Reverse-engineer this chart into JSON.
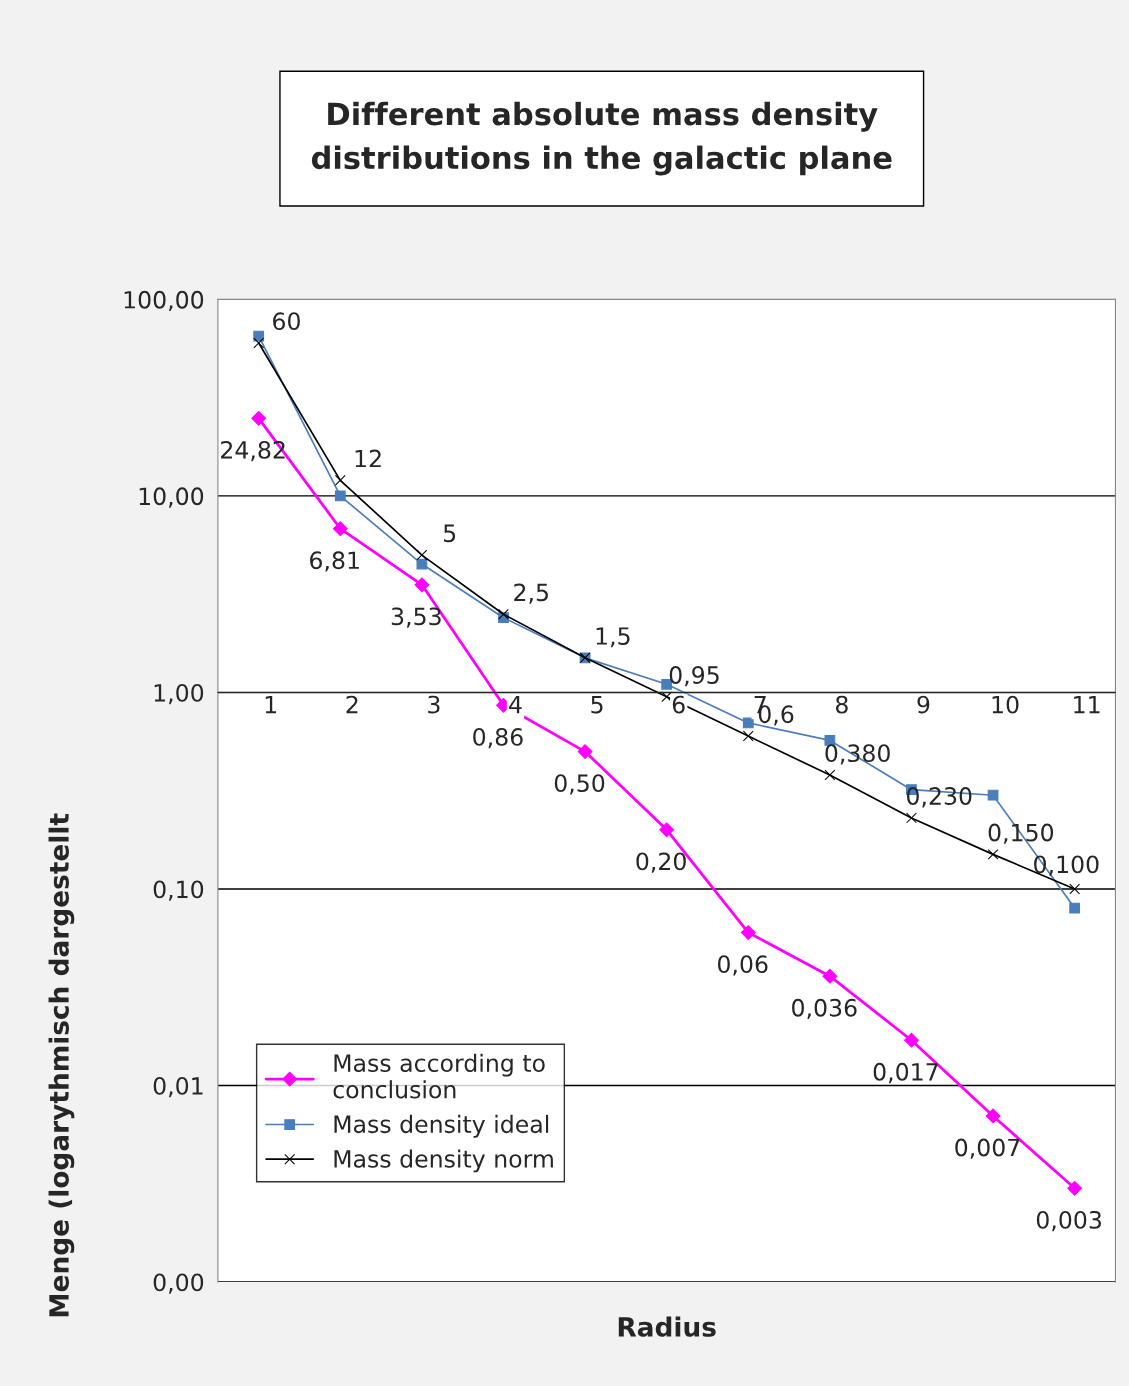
{
  "chart_data": {
    "type": "line",
    "title": "Different absolute mass density\ndistributions in the galactic plane",
    "xlabel": "Radius",
    "ylabel": "Menge (logarythmisch dargestellt",
    "categories": [
      "1",
      "2",
      "3",
      "4",
      "5",
      "6",
      "7",
      "8",
      "9",
      "10",
      "11"
    ],
    "series": [
      {
        "name": "Mass according to\nconclusion",
        "color": "#ff00ff",
        "marker": "diamond",
        "values": [
          24.82,
          6.81,
          3.53,
          0.86,
          0.5,
          0.2,
          0.06,
          0.036,
          0.017,
          0.007,
          0.003
        ],
        "value_labels": [
          "24,82",
          "6,81",
          "3,53",
          "0,86",
          "0,50",
          "0,20",
          "0,06",
          "0,036",
          "0,017",
          "0,007",
          "0,003"
        ]
      },
      {
        "name": "Mass density ideal",
        "color": "#4a7ebb",
        "marker": "square",
        "values": [
          65,
          10,
          4.5,
          2.4,
          1.5,
          1.1,
          0.7,
          0.57,
          0.32,
          0.3,
          0.08
        ]
      },
      {
        "name": "Mass density norm",
        "color": "#000000",
        "marker": "cross",
        "values": [
          60,
          12,
          5,
          2.5,
          1.5,
          0.95,
          0.6,
          0.38,
          0.23,
          0.15,
          0.1
        ],
        "value_labels": [
          "60",
          "12",
          "5",
          "2,5",
          "1,5",
          "0,95",
          "0,6",
          "0,380",
          "0,230",
          "0,150",
          "0,100"
        ]
      }
    ],
    "log": "y",
    "ylim": [
      0.001,
      100
    ],
    "yticks": [
      {
        "value": 0.001,
        "label": "0,00"
      },
      {
        "value": 0.01,
        "label": "0,01"
      },
      {
        "value": 0.1,
        "label": "0,10"
      },
      {
        "value": 1,
        "label": "1,00"
      },
      {
        "value": 10,
        "label": "10,00"
      },
      {
        "value": 100,
        "label": "100,00"
      }
    ],
    "grid": "y",
    "legend": "bottom left"
  }
}
